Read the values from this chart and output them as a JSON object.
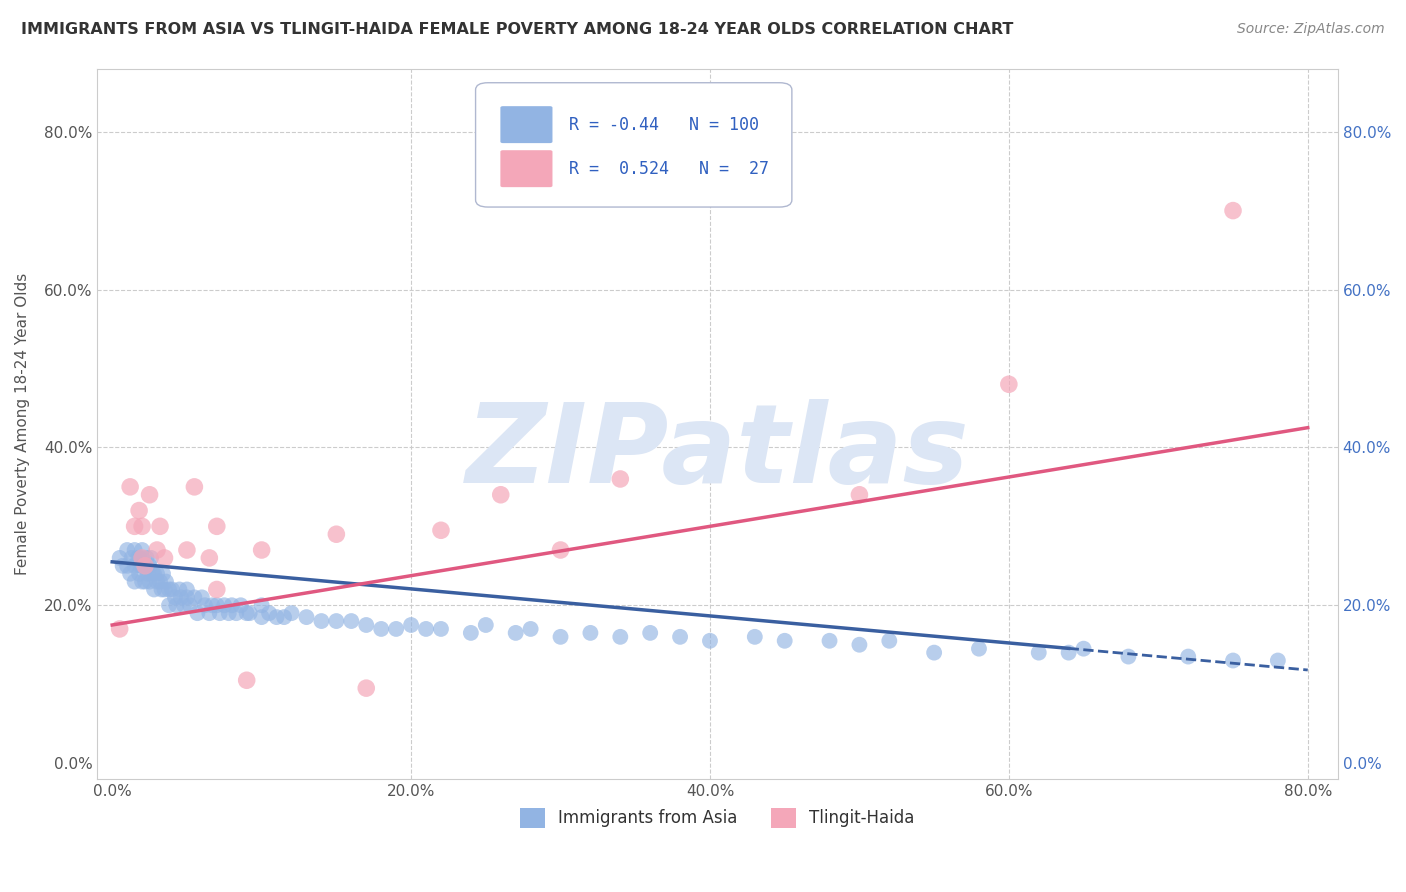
{
  "title": "IMMIGRANTS FROM ASIA VS TLINGIT-HAIDA FEMALE POVERTY AMONG 18-24 YEAR OLDS CORRELATION CHART",
  "source": "Source: ZipAtlas.com",
  "ylabel": "Female Poverty Among 18-24 Year Olds",
  "xlim": [
    -0.01,
    0.82
  ],
  "ylim": [
    -0.02,
    0.88
  ],
  "xticks": [
    0.0,
    0.2,
    0.4,
    0.6,
    0.8
  ],
  "yticks": [
    0.0,
    0.2,
    0.4,
    0.6,
    0.8
  ],
  "xtick_labels": [
    "0.0%",
    "20.0%",
    "40.0%",
    "60.0%",
    "80.0%"
  ],
  "ytick_labels": [
    "0.0%",
    "20.0%",
    "40.0%",
    "60.0%",
    "80.0%"
  ],
  "blue_R": -0.44,
  "blue_N": 100,
  "pink_R": 0.524,
  "pink_N": 27,
  "blue_color": "#92b4e3",
  "pink_color": "#f4a7b9",
  "blue_line_color": "#3a5fa0",
  "pink_line_color": "#e05880",
  "watermark": "ZIPatlas",
  "watermark_color": "#dce6f5",
  "legend_label_blue": "Immigrants from Asia",
  "legend_label_pink": "Tlingit-Haida",
  "blue_line_start_x": 0.0,
  "blue_line_start_y": 0.255,
  "blue_line_end_x": 0.8,
  "blue_line_end_y": 0.118,
  "blue_line_solid_end_x": 0.64,
  "pink_line_start_x": 0.0,
  "pink_line_start_y": 0.175,
  "pink_line_end_x": 0.8,
  "pink_line_end_y": 0.425,
  "blue_scatter_x": [
    0.005,
    0.007,
    0.01,
    0.01,
    0.012,
    0.013,
    0.015,
    0.015,
    0.015,
    0.017,
    0.018,
    0.018,
    0.019,
    0.02,
    0.02,
    0.02,
    0.02,
    0.022,
    0.022,
    0.023,
    0.024,
    0.025,
    0.025,
    0.026,
    0.027,
    0.028,
    0.028,
    0.03,
    0.03,
    0.032,
    0.033,
    0.034,
    0.035,
    0.036,
    0.038,
    0.038,
    0.04,
    0.042,
    0.043,
    0.045,
    0.046,
    0.048,
    0.05,
    0.05,
    0.052,
    0.055,
    0.057,
    0.06,
    0.062,
    0.065,
    0.067,
    0.07,
    0.072,
    0.075,
    0.078,
    0.08,
    0.083,
    0.086,
    0.09,
    0.092,
    0.1,
    0.1,
    0.105,
    0.11,
    0.115,
    0.12,
    0.13,
    0.14,
    0.15,
    0.16,
    0.17,
    0.18,
    0.19,
    0.2,
    0.21,
    0.22,
    0.24,
    0.25,
    0.27,
    0.28,
    0.3,
    0.32,
    0.34,
    0.36,
    0.38,
    0.4,
    0.43,
    0.45,
    0.48,
    0.5,
    0.52,
    0.55,
    0.58,
    0.62,
    0.64,
    0.65,
    0.68,
    0.72,
    0.75,
    0.78
  ],
  "blue_scatter_y": [
    0.26,
    0.25,
    0.27,
    0.25,
    0.24,
    0.26,
    0.27,
    0.25,
    0.23,
    0.26,
    0.26,
    0.24,
    0.25,
    0.27,
    0.26,
    0.25,
    0.23,
    0.25,
    0.23,
    0.26,
    0.24,
    0.25,
    0.23,
    0.26,
    0.24,
    0.24,
    0.22,
    0.24,
    0.23,
    0.23,
    0.22,
    0.24,
    0.22,
    0.23,
    0.22,
    0.2,
    0.22,
    0.21,
    0.2,
    0.22,
    0.21,
    0.2,
    0.21,
    0.22,
    0.2,
    0.21,
    0.19,
    0.21,
    0.2,
    0.19,
    0.2,
    0.2,
    0.19,
    0.2,
    0.19,
    0.2,
    0.19,
    0.2,
    0.19,
    0.19,
    0.2,
    0.185,
    0.19,
    0.185,
    0.185,
    0.19,
    0.185,
    0.18,
    0.18,
    0.18,
    0.175,
    0.17,
    0.17,
    0.175,
    0.17,
    0.17,
    0.165,
    0.175,
    0.165,
    0.17,
    0.16,
    0.165,
    0.16,
    0.165,
    0.16,
    0.155,
    0.16,
    0.155,
    0.155,
    0.15,
    0.155,
    0.14,
    0.145,
    0.14,
    0.14,
    0.145,
    0.135,
    0.135,
    0.13,
    0.13
  ],
  "pink_scatter_x": [
    0.005,
    0.012,
    0.015,
    0.018,
    0.02,
    0.02,
    0.022,
    0.025,
    0.03,
    0.032,
    0.035,
    0.05,
    0.055,
    0.065,
    0.07,
    0.07,
    0.09,
    0.1,
    0.15,
    0.17,
    0.22,
    0.26,
    0.3,
    0.34,
    0.5,
    0.6,
    0.75
  ],
  "pink_scatter_y": [
    0.17,
    0.35,
    0.3,
    0.32,
    0.26,
    0.3,
    0.25,
    0.34,
    0.27,
    0.3,
    0.26,
    0.27,
    0.35,
    0.26,
    0.22,
    0.3,
    0.105,
    0.27,
    0.29,
    0.095,
    0.295,
    0.34,
    0.27,
    0.36,
    0.34,
    0.48,
    0.7
  ]
}
